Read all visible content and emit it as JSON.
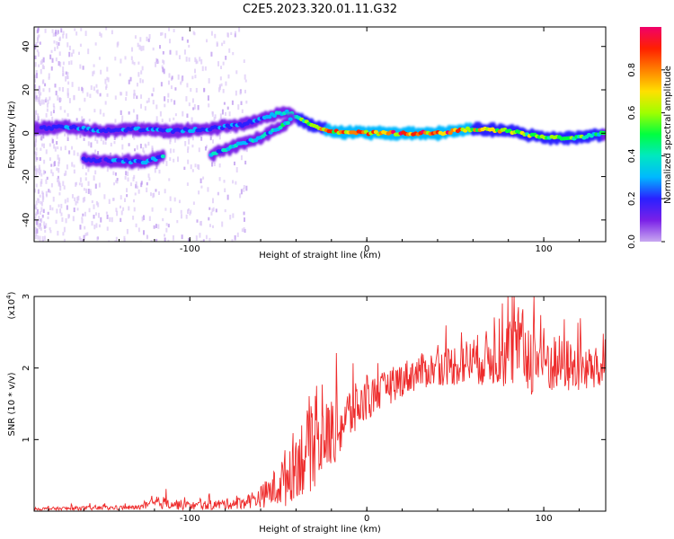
{
  "title": "C2E5.2023.320.01.11.G32",
  "chart_data": [
    {
      "type": "heatmap",
      "xlabel": "Height of straight line (km)",
      "ylabel": "Frequency (Hz)",
      "xlim": [
        -188,
        135
      ],
      "ylim": [
        -50,
        49
      ],
      "xticks": [
        -100,
        0,
        100
      ],
      "yticks": [
        -40,
        -20,
        0,
        20,
        40
      ],
      "colorbar": {
        "label": "Normalized spectral amplitude",
        "range": [
          0.0,
          1.0
        ],
        "ticks": [
          0.0,
          0.2,
          0.4,
          0.6,
          0.8
        ],
        "colors": [
          "#ffffff",
          "#c8a8f0",
          "#7a20e8",
          "#2a20ff",
          "#00b8ff",
          "#00e8c0",
          "#00ff40",
          "#a0ff00",
          "#ffe000",
          "#ff8000",
          "#ff2000",
          "#f0006a"
        ]
      },
      "tracks": [
        {
          "name": "",
          "x": [
            -188,
            -170,
            -150,
            -130,
            -110,
            -90,
            -70,
            -55,
            -45,
            -35,
            -20,
            0,
            20,
            40,
            60,
            80,
            100,
            120,
            135
          ],
          "y": [
            2,
            3,
            1,
            2,
            1,
            2,
            4,
            8,
            10,
            5,
            1,
            0,
            0,
            0,
            2,
            1,
            -2,
            -2,
            0
          ],
          "amplitude": [
            0.25,
            0.3,
            0.3,
            0.3,
            0.35,
            0.3,
            0.3,
            0.35,
            0.45,
            0.55,
            0.75,
            0.8,
            0.85,
            0.9,
            0.7,
            0.65,
            0.6,
            0.55,
            0.5
          ]
        },
        {
          "name": "",
          "x": [
            -160,
            -140,
            -125,
            -115
          ],
          "y": [
            -12,
            -13,
            -13,
            -11
          ],
          "amplitude": [
            0.25,
            0.3,
            0.35,
            0.4
          ]
        },
        {
          "name": "",
          "x": [
            -88,
            -75,
            -60,
            -48,
            -42
          ],
          "y": [
            -10,
            -6,
            -2,
            3,
            7
          ],
          "amplitude": [
            0.35,
            0.4,
            0.4,
            0.45,
            0.5
          ]
        }
      ]
    },
    {
      "type": "line",
      "xlabel": "Height of straight line (km)",
      "ylabel": "SNR (10 * v/v)",
      "y_multiplier": "(x10^4)",
      "y_multiplier_base": "(x10",
      "y_multiplier_exp": "4",
      "y_multiplier_close": ")",
      "xlim": [
        -188,
        135
      ],
      "ylim": [
        0,
        30000
      ],
      "xticks": [
        -100,
        0,
        100
      ],
      "yticks": [
        10000,
        20000,
        30000
      ],
      "ytick_labels": [
        "1",
        "2",
        "3"
      ],
      "series": [
        {
          "color": "#ee2b2b",
          "x": [
            -188,
            -160,
            -130,
            -115,
            -100,
            -85,
            -70,
            -60,
            -50,
            -45,
            -40,
            -35,
            -30,
            -25,
            -20,
            -15,
            -10,
            -5,
            0,
            10,
            20,
            30,
            40,
            50,
            60,
            70,
            80,
            85,
            90,
            100,
            110,
            120,
            135
          ],
          "y": [
            300,
            400,
            500,
            1200,
            700,
            900,
            1200,
            2000,
            3500,
            5000,
            7000,
            8000,
            9000,
            10000,
            11000,
            12000,
            13500,
            14500,
            15500,
            17000,
            18500,
            19500,
            20000,
            20500,
            21000,
            21500,
            22000,
            23000,
            22000,
            21000,
            20500,
            20000,
            19500
          ],
          "noise": [
            200,
            300,
            300,
            900,
            600,
            700,
            900,
            1500,
            3000,
            4500,
            5000,
            6000,
            6000,
            5000,
            5000,
            4500,
            4000,
            3500,
            3000,
            2500,
            2500,
            2500,
            2500,
            3000,
            3500,
            4000,
            5000,
            6000,
            6000,
            5000,
            4000,
            3500,
            3000
          ]
        }
      ]
    }
  ]
}
